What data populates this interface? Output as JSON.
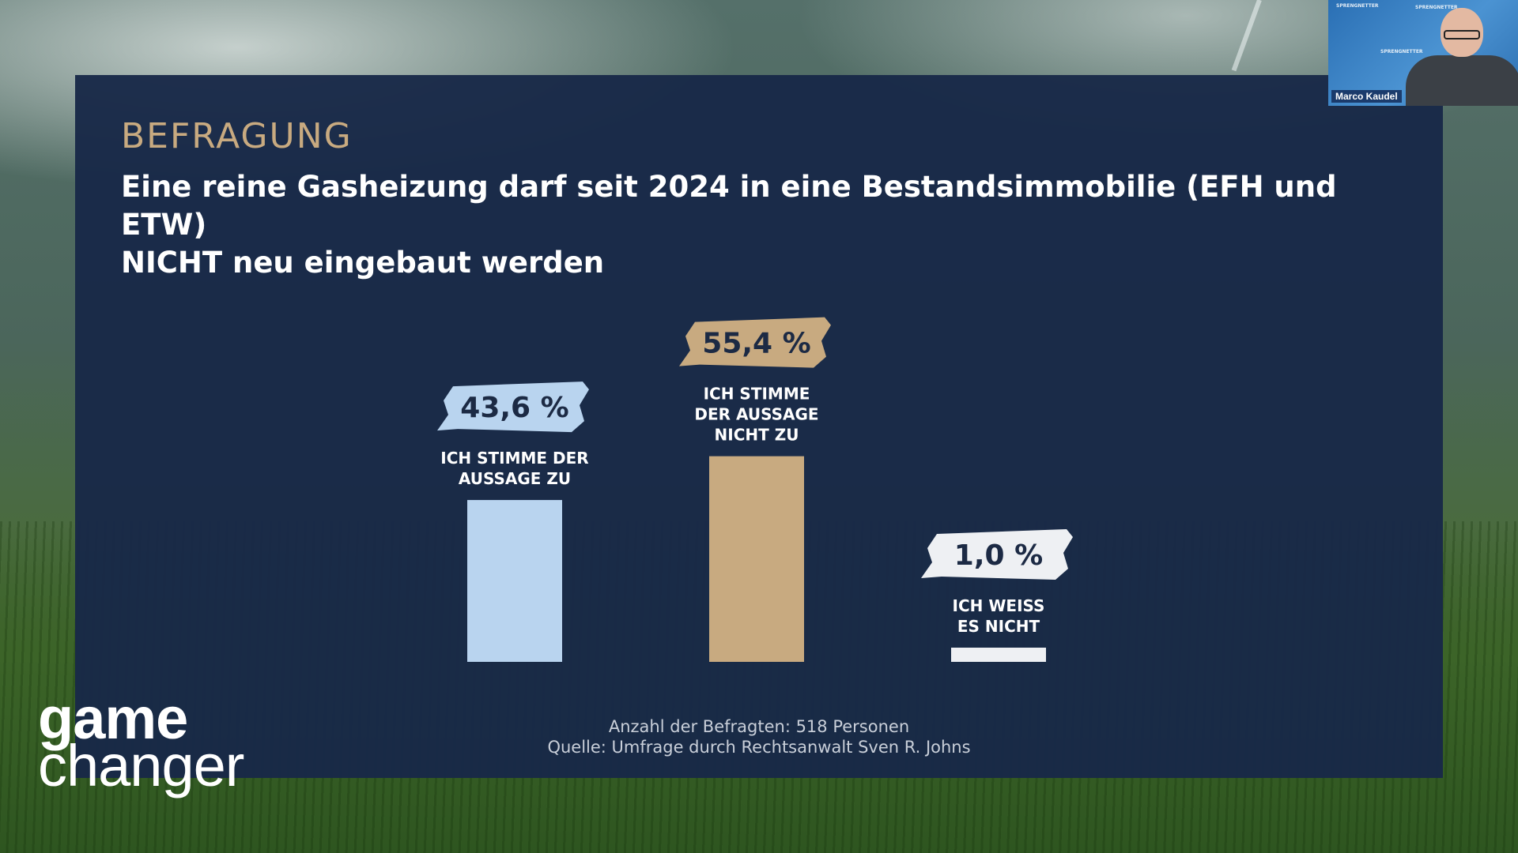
{
  "slide": {
    "kicker": "BEFRAGUNG",
    "title_line1": "Eine reine Gasheizung darf seit 2024 in eine Bestandsimmobilie (EFH und ETW)",
    "title_line2": "NICHT neu eingebaut werden",
    "footnote_respondents": "Anzahl der Befragten: 518 Personen",
    "footnote_source": "Quelle: Umfrage durch Rechtsanwalt Sven R. Johns"
  },
  "chart_data": {
    "type": "bar",
    "categories": [
      [
        "ICH STIMME DER",
        "AUSSAGE ZU"
      ],
      [
        "ICH STIMME",
        "DER AUSSAGE",
        "NICHT ZU"
      ],
      [
        "ICH WEISS",
        "ES NICHT"
      ]
    ],
    "values": [
      43.6,
      55.4,
      1.0
    ],
    "value_labels": [
      "43,6 %",
      "55,4 %",
      "1,0 %"
    ],
    "colors": [
      "#b9d4ef",
      "#c8aa80",
      "#eef0f3"
    ],
    "label_text_color": "#1c2a44",
    "category_text_color": "#ffffff",
    "unit": "%",
    "grid": false,
    "legend": "none"
  },
  "logo": {
    "line1": "game",
    "line2": "changer",
    "accent_color": "#9cc4ee"
  },
  "webcam": {
    "name": "Marco Kaudel",
    "brand": "SPRENGNETTER"
  }
}
